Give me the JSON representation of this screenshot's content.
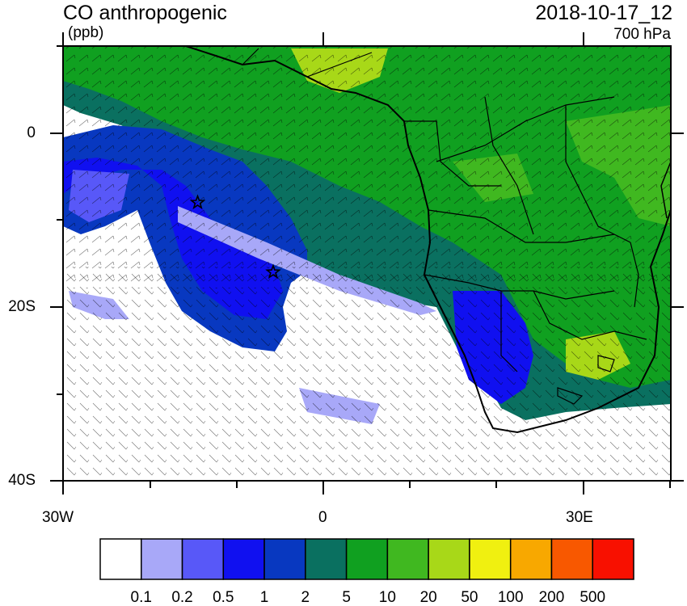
{
  "header": {
    "title": "CO anthropogenic",
    "units": "(ppb)",
    "datetime": "2018-10-17_12",
    "level": "700 hPa"
  },
  "axes": {
    "lat_ticks": [
      {
        "label": "0",
        "lat": 0
      },
      {
        "label": "20S",
        "lat": -20
      },
      {
        "label": "40S",
        "lat": -40
      }
    ],
    "lon_ticks": [
      {
        "label": "30W",
        "lon": -30
      },
      {
        "label": "0",
        "lon": 0
      },
      {
        "label": "30E",
        "lon": 30
      }
    ],
    "lon_range": [
      -30,
      40
    ],
    "lat_range": [
      -40,
      10
    ]
  },
  "colorbar": {
    "colors": [
      "#ffffff",
      "#a8a8f8",
      "#5858f8",
      "#1010f0",
      "#0838c0",
      "#0a7060",
      "#10a020",
      "#40b820",
      "#a8d818",
      "#f0f010",
      "#f8a800",
      "#f85800",
      "#f81000"
    ],
    "labels": [
      "0.1",
      "0.2",
      "0.5",
      "1",
      "2",
      "5",
      "10",
      "20",
      "50",
      "100",
      "200",
      "500"
    ]
  },
  "markers": [
    {
      "name": "star",
      "lon": -14.5,
      "lat": -8
    },
    {
      "name": "star",
      "lon": -5.8,
      "lat": -16
    }
  ],
  "colors": {
    "ocean_clean": "#ffffff",
    "pollution_high": "#10a020",
    "pollution_mid": "#0a7060",
    "pollution_low": "#1010f0"
  }
}
